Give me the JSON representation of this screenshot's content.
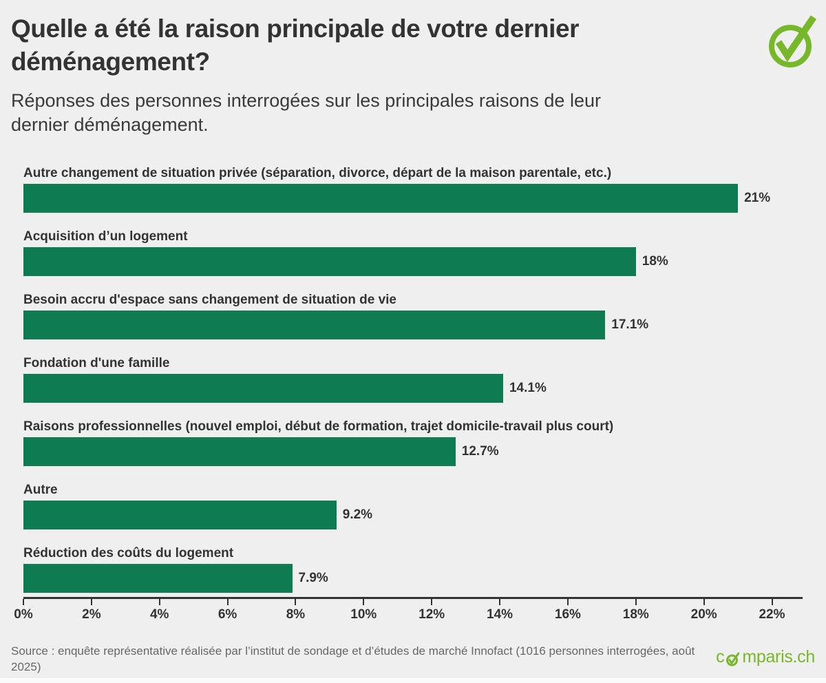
{
  "page": {
    "background": "#efefef"
  },
  "header": {
    "title_line1": "Quelle a été la raison principale de votre dernier",
    "title_line2": "déménagement?",
    "subtitle_line1": "Réponses des personnes interrogées sur les principales raisons de leur",
    "subtitle_line2": "dernier déménagement.",
    "badge_icon": "check-circle-icon",
    "badge_color": "#76b82a"
  },
  "chart_data": {
    "type": "bar",
    "orientation": "horizontal",
    "title": "Quelle a été la raison principale de votre dernier déménagement?",
    "subtitle": "Réponses des personnes interrogées sur les principales raisons de leur dernier déménagement.",
    "bar_color": "#0e7b52",
    "text_color": "#333333",
    "grid": false,
    "legend_position": "none",
    "xlim": [
      0,
      22.9
    ],
    "categories": [
      "Autre changement de situation privée (séparation, divorce, départ de la maison parentale, etc.)",
      "Acquisition d’un logement",
      "Besoin accru d'espace sans changement de situation de vie",
      "Fondation d'une famille",
      "Raisons professionnelles (nouvel emploi, début de formation, trajet domicile-travail plus court)",
      "Autre",
      "Réduction des coûts du logement"
    ],
    "values": [
      21,
      18,
      17.1,
      14.1,
      12.7,
      9.2,
      7.9
    ],
    "value_labels": [
      "21%",
      "18%",
      "17.1%",
      "14.1%",
      "12.7%",
      "9.2%",
      "7.9%"
    ],
    "x_tick_values": [
      0,
      2,
      4,
      6,
      8,
      10,
      12,
      14,
      16,
      18,
      20,
      22
    ],
    "x_tick_labels": [
      "0%",
      "2%",
      "4%",
      "6%",
      "8%",
      "10%",
      "12%",
      "14%",
      "16%",
      "18%",
      "20%",
      "22%"
    ]
  },
  "footer": {
    "source_text": "Source : enquête représentative réalisée par l’institut de sondage et d’études de marché Innofact (1016 personnes interrogées, août 2025)",
    "brand": {
      "pre": "c",
      "post": "mparis.ch",
      "color": "#76b82a",
      "icon": "comparis-check-icon"
    }
  }
}
